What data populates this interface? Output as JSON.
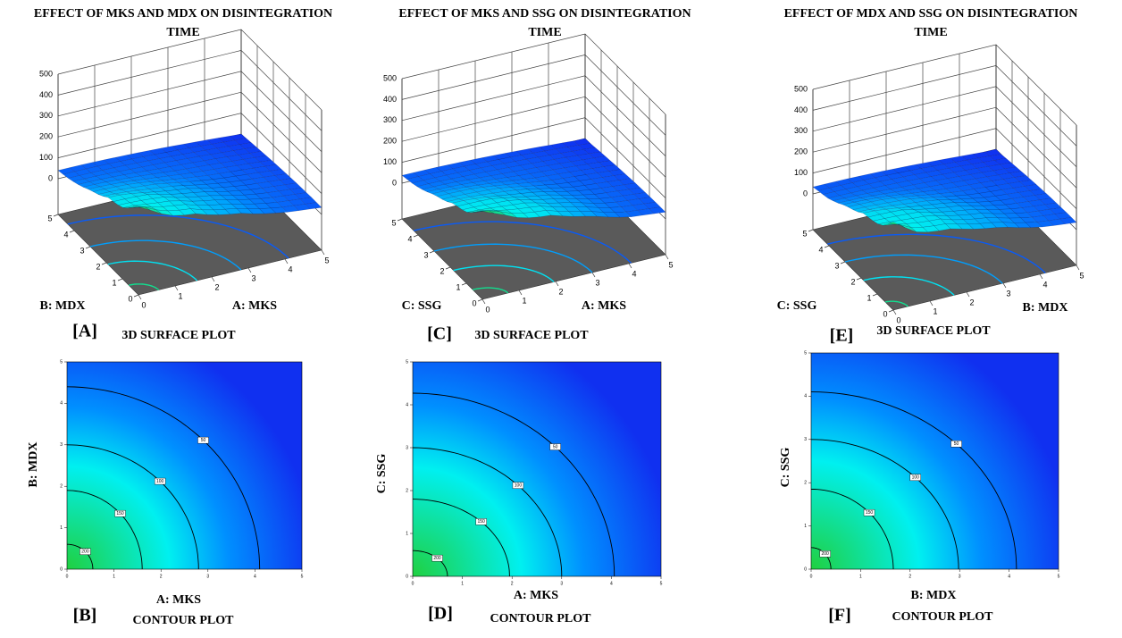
{
  "chart_data": [
    {
      "type": "surface",
      "title": [
        "EFFECT  OF MKS AND MDX ON DISINTEGRATION",
        "TIME"
      ],
      "xlabel": "A: MKS",
      "ylabel": "B: MDX",
      "xlim": [
        0,
        5
      ],
      "ylim": [
        0,
        5
      ],
      "zlim": [
        0,
        500
      ],
      "xticks": [
        0,
        1,
        2,
        3,
        4,
        5
      ],
      "yticks": [
        0,
        1,
        2,
        3,
        4,
        5
      ],
      "zticks": [
        0,
        100,
        200,
        300,
        400,
        500
      ],
      "colors": [
        "#20d040",
        "#00f0f0",
        "#0090ff",
        "#1030f0"
      ],
      "panel": "[A]",
      "caption": "3D SURFACE  PLOT"
    },
    {
      "type": "contour",
      "xlabel": "A: MKS",
      "ylabel": "B: MDX",
      "xlim": [
        0,
        5
      ],
      "ylim": [
        0,
        5
      ],
      "xticks": [
        0,
        1,
        2,
        3,
        4,
        5
      ],
      "yticks": [
        0,
        1,
        2,
        3,
        4,
        5
      ],
      "colors": [
        "#20d040",
        "#00f0f0",
        "#0090ff",
        "#1030f0"
      ],
      "contours": [
        {
          "level": 50,
          "x_intercept": 4.1,
          "y_intercept": 4.4
        },
        {
          "level": 100,
          "x_intercept": 2.8,
          "y_intercept": 3.0
        },
        {
          "level": 150,
          "x_intercept": 1.6,
          "y_intercept": 1.9
        },
        {
          "level": 200,
          "x_intercept": 0.55,
          "y_intercept": 0.6
        }
      ],
      "panel": "[B]",
      "caption": "CONTOUR PLOT"
    },
    {
      "type": "surface",
      "title": [
        "EFFECT  OF MKS AND SSG ON DISINTEGRATION",
        "TIME"
      ],
      "xlabel": "A: MKS",
      "ylabel": "C: SSG",
      "xlim": [
        0,
        5
      ],
      "ylim": [
        0,
        5
      ],
      "zlim": [
        0,
        500
      ],
      "xticks": [
        0,
        1,
        2,
        3,
        4,
        5
      ],
      "yticks": [
        0,
        1,
        2,
        3,
        4,
        5
      ],
      "zticks": [
        0,
        100,
        200,
        300,
        400,
        500
      ],
      "colors": [
        "#20d040",
        "#00f0f0",
        "#0090ff",
        "#1030f0"
      ],
      "panel": "[C]",
      "caption": "3D SURFACE  PLOT"
    },
    {
      "type": "contour",
      "xlabel": "A: MKS",
      "ylabel": "C: SSG",
      "xlim": [
        0,
        5
      ],
      "ylim": [
        0,
        5
      ],
      "xticks": [
        0,
        1,
        2,
        3,
        4,
        5
      ],
      "yticks": [
        0,
        1,
        2,
        3,
        4,
        5
      ],
      "colors": [
        "#20d040",
        "#00f0f0",
        "#0090ff",
        "#1030f0"
      ],
      "contours": [
        {
          "level": 50,
          "x_intercept": 4.06,
          "y_intercept": 4.27
        },
        {
          "level": 100,
          "x_intercept": 3.0,
          "y_intercept": 3.0
        },
        {
          "level": 150,
          "x_intercept": 1.95,
          "y_intercept": 1.8
        },
        {
          "level": 200,
          "x_intercept": 0.7,
          "y_intercept": 0.6
        }
      ],
      "panel": "[D]",
      "caption": "CONTOUR PLOT"
    },
    {
      "type": "surface",
      "title": [
        "EFFECT  OF MDX AND SSG ON DISINTEGRATION",
        "TIME"
      ],
      "xlabel": "B: MDX",
      "ylabel": "C: SSG",
      "xlim": [
        0,
        5
      ],
      "ylim": [
        0,
        5
      ],
      "zlim": [
        0,
        500
      ],
      "xticks": [
        0,
        1,
        2,
        3,
        4,
        5
      ],
      "yticks": [
        0,
        1,
        2,
        3,
        4,
        5
      ],
      "zticks": [
        0,
        100,
        200,
        300,
        400,
        500
      ],
      "colors": [
        "#20d040",
        "#00f0f0",
        "#0090ff",
        "#1030f0"
      ],
      "panel": "[E]",
      "caption": "3D SURFACE  PLOT"
    },
    {
      "type": "contour",
      "xlabel": "B: MDX",
      "ylabel": "C: SSG",
      "xlim": [
        0,
        5
      ],
      "ylim": [
        0,
        5
      ],
      "xticks": [
        0,
        1,
        2,
        3,
        4,
        5
      ],
      "yticks": [
        0,
        1,
        2,
        3,
        4,
        5
      ],
      "colors": [
        "#20d040",
        "#00f0f0",
        "#0090ff",
        "#1030f0"
      ],
      "contours": [
        {
          "level": 50,
          "x_intercept": 4.15,
          "y_intercept": 4.1
        },
        {
          "level": 100,
          "x_intercept": 2.98,
          "y_intercept": 3.0
        },
        {
          "level": 150,
          "x_intercept": 1.66,
          "y_intercept": 1.85
        },
        {
          "level": 200,
          "x_intercept": 0.4,
          "y_intercept": 0.5
        }
      ],
      "panel": "[F]",
      "caption": "CONTOUR PLOT"
    }
  ]
}
